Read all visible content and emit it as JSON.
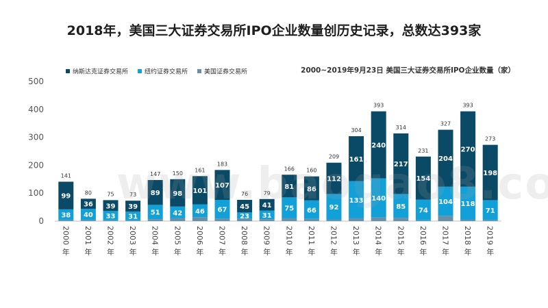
{
  "page": {
    "title": "2018年，美国三大证券交易所IPO企业数量创历史记录，总数达393家",
    "watermark": "www.baogao8.com"
  },
  "chart_data": {
    "type": "bar",
    "stacked": true,
    "subtitle": "2000~2019年9月23日 美国三大证券交易所IPO企业数量（家）",
    "categories": [
      "2000年",
      "2001年",
      "2002年",
      "2003年",
      "2004年",
      "2005年",
      "2006年",
      "2007年",
      "2008年",
      "2009年",
      "2010年",
      "2011年",
      "2012年",
      "2013年",
      "2014年",
      "2015年",
      "2016年",
      "2017年",
      "2018年",
      "2019年"
    ],
    "series": [
      {
        "name": "美国证券交易所",
        "color": "#6a8fa8",
        "values": [
          4,
          4,
          3,
          3,
          7,
          10,
          14,
          9,
          8,
          7,
          10,
          8,
          5,
          10,
          13,
          12,
          3,
          19,
          5,
          4
        ]
      },
      {
        "name": "纽约证券交易所",
        "color": "#12a0d8",
        "values": [
          38,
          40,
          33,
          31,
          51,
          42,
          46,
          67,
          23,
          31,
          75,
          66,
          92,
          133,
          140,
          85,
          74,
          104,
          118,
          71
        ]
      },
      {
        "name": "纳斯达克证券交易所",
        "color": "#0a4a66",
        "values": [
          99,
          36,
          39,
          39,
          89,
          98,
          101,
          107,
          45,
          41,
          81,
          86,
          112,
          161,
          240,
          217,
          154,
          204,
          270,
          198
        ]
      }
    ],
    "totals": [
      141,
      80,
      75,
      73,
      147,
      150,
      161,
      183,
      76,
      79,
      166,
      160,
      209,
      304,
      393,
      314,
      231,
      327,
      393,
      273
    ],
    "ylim": [
      0,
      500
    ],
    "yticks": [
      0,
      100,
      200,
      300,
      400,
      500
    ],
    "legend_position": "top-left"
  }
}
